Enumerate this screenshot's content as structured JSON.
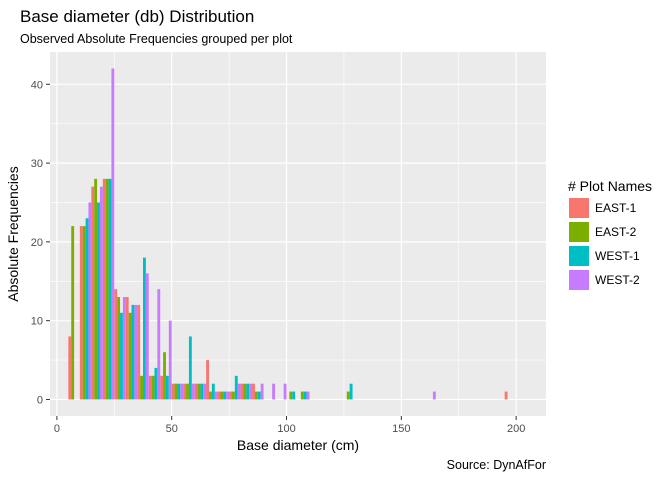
{
  "chart_data": {
    "type": "bar",
    "title": "Base diameter (db) Distribution",
    "subtitle": "Observed Absolute Frequencies grouped per plot",
    "xlabel": "Base diameter (cm)",
    "ylabel": "Absolute Frequencies",
    "caption": "Source: DynAfFor",
    "xlim": [
      -3,
      213
    ],
    "ylim": [
      -2.1,
      44.1
    ],
    "x_ticks": [
      0,
      50,
      100,
      150,
      200
    ],
    "y_ticks": [
      0,
      10,
      20,
      30,
      40
    ],
    "bin_width": 5,
    "grid": true,
    "legend": {
      "title": "# Plot Names",
      "placement": "right"
    },
    "series": [
      {
        "name": "EAST-1",
        "color": "#F8766D",
        "x": [
          7.5,
          12.5,
          17.5,
          22.5,
          27.5,
          32.5,
          37.5,
          42.5,
          47.5,
          52.5,
          57.5,
          62.5,
          67.5,
          72.5,
          77.5,
          82.5,
          87.5,
          197.5
        ],
        "values": [
          8,
          22,
          27,
          28,
          14,
          13,
          12,
          3,
          3,
          2,
          2,
          2,
          5,
          1,
          1,
          2,
          2,
          1
        ]
      },
      {
        "name": "EAST-2",
        "color": "#7CAE00",
        "x": [
          7.5,
          12.5,
          17.5,
          22.5,
          27.5,
          32.5,
          37.5,
          42.5,
          47.5,
          52.5,
          57.5,
          62.5,
          67.5,
          72.5,
          77.5,
          82.5,
          87.5,
          102.5,
          107.5,
          127.5
        ],
        "values": [
          22,
          22,
          28,
          28,
          13,
          11,
          3,
          3,
          6,
          2,
          2,
          2,
          1,
          1,
          1,
          2,
          1,
          1,
          1,
          1
        ]
      },
      {
        "name": "WEST-1",
        "color": "#00BFC4",
        "x": [
          12.5,
          17.5,
          22.5,
          27.5,
          32.5,
          37.5,
          42.5,
          47.5,
          52.5,
          57.5,
          62.5,
          67.5,
          72.5,
          77.5,
          82.5,
          87.5,
          102.5,
          107.5,
          127.5
        ],
        "values": [
          23,
          25,
          28,
          11,
          12,
          18,
          4,
          3,
          2,
          8,
          2,
          2,
          1,
          3,
          2,
          1,
          1,
          1,
          2
        ]
      },
      {
        "name": "WEST-2",
        "color": "#C77CFF",
        "x": [
          12.5,
          17.5,
          22.5,
          27.5,
          32.5,
          37.5,
          42.5,
          47.5,
          52.5,
          57.5,
          62.5,
          67.5,
          72.5,
          77.5,
          82.5,
          87.5,
          92.5,
          97.5,
          107.5,
          162.5
        ],
        "values": [
          25,
          27,
          42,
          13,
          12,
          16,
          14,
          10,
          2,
          2,
          2,
          1,
          1,
          2,
          2,
          2,
          2,
          2,
          1,
          1
        ]
      }
    ]
  }
}
